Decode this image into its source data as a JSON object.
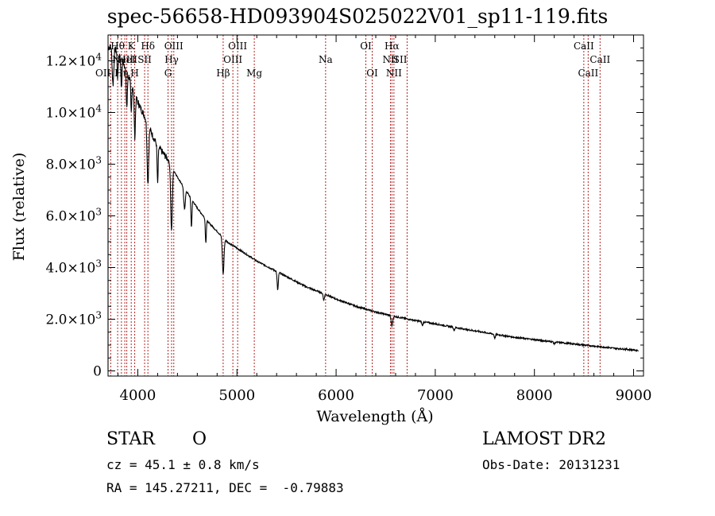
{
  "title": "spec-56658-HD093904S025022V01_sp11-119.fits",
  "info": {
    "class_label": "STAR",
    "class_value": "O",
    "survey": "LAMOST DR2",
    "cz": "cz = 45.1 ± 0.8 km/s",
    "obs_date": "Obs-Date: 20131231",
    "coords": "RA = 145.27211, DEC =  -0.79883"
  },
  "chart_data": {
    "type": "line",
    "title": "spec-56658-HD093904S025022V01_sp11-119.fits",
    "xlabel": "Wavelength (Å)",
    "ylabel": "Flux (relative)",
    "xlim": [
      3700,
      9100
    ],
    "ylim": [
      -200,
      13000
    ],
    "xticks": [
      {
        "v": 4000,
        "label": "4000"
      },
      {
        "v": 5000,
        "label": "5000"
      },
      {
        "v": 6000,
        "label": "6000"
      },
      {
        "v": 7000,
        "label": "7000"
      },
      {
        "v": 8000,
        "label": "8000"
      },
      {
        "v": 9000,
        "label": "9000"
      }
    ],
    "yticks": [
      {
        "v": 0,
        "label": "0",
        "exp": ""
      },
      {
        "v": 2000,
        "label": "2.0×10",
        "exp": "3"
      },
      {
        "v": 4000,
        "label": "4.0×10",
        "exp": "3"
      },
      {
        "v": 6000,
        "label": "6.0×10",
        "exp": "3"
      },
      {
        "v": 8000,
        "label": "8.0×10",
        "exp": "3"
      },
      {
        "v": 10000,
        "label": "1.0×10",
        "exp": "4"
      },
      {
        "v": 12000,
        "label": "1.2×10",
        "exp": "4"
      }
    ],
    "lines": [
      {
        "x": 3727,
        "label": "OII",
        "row": 3,
        "anchor": "end"
      },
      {
        "x": 3797,
        "label": "Hθ",
        "row": 1,
        "anchor": "middle"
      },
      {
        "x": 3835,
        "label": "Hη",
        "row": 3,
        "anchor": "middle"
      },
      {
        "x": 3869,
        "label": "NeIII",
        "row": 2,
        "anchor": "middle"
      },
      {
        "x": 3889,
        "label": "HeI",
        "row": 2,
        "anchor": "middle"
      },
      {
        "x": 3934,
        "label": "K",
        "row": 1,
        "anchor": "middle"
      },
      {
        "x": 3969,
        "label": "H",
        "row": 3,
        "anchor": "middle"
      },
      {
        "x": 4069,
        "label": "SII",
        "row": 2,
        "anchor": "middle"
      },
      {
        "x": 4102,
        "label": "Hδ",
        "row": 1,
        "anchor": "middle"
      },
      {
        "x": 4305,
        "label": "G",
        "row": 3,
        "anchor": "middle"
      },
      {
        "x": 4341,
        "label": "Hγ",
        "row": 2,
        "anchor": "middle"
      },
      {
        "x": 4363,
        "label": "OIII",
        "row": 1,
        "anchor": "middle"
      },
      {
        "x": 4861,
        "label": "Hβ",
        "row": 3,
        "anchor": "middle"
      },
      {
        "x": 4959,
        "label": "OIII",
        "row": 2,
        "anchor": "middle"
      },
      {
        "x": 5007,
        "label": "OIII",
        "row": 1,
        "anchor": "middle"
      },
      {
        "x": 5175,
        "label": "Mg",
        "row": 3,
        "anchor": "middle"
      },
      {
        "x": 5894,
        "label": "Na",
        "row": 2,
        "anchor": "middle"
      },
      {
        "x": 6300,
        "label": "OI",
        "row": 1,
        "anchor": "middle"
      },
      {
        "x": 6364,
        "label": "OI",
        "row": 3,
        "anchor": "middle"
      },
      {
        "x": 6548,
        "label": "NII",
        "row": 2,
        "anchor": "middle"
      },
      {
        "x": 6563,
        "label": "Hα",
        "row": 1,
        "anchor": "middle"
      },
      {
        "x": 6583,
        "label": "NII",
        "row": 3,
        "anchor": "middle"
      },
      {
        "x": 6716,
        "label": "SII",
        "row": 2,
        "anchor": "end"
      },
      {
        "x": 8498,
        "label": "CaII",
        "row": 1,
        "anchor": "middle"
      },
      {
        "x": 8542,
        "label": "CaII",
        "row": 3,
        "anchor": "middle"
      },
      {
        "x": 8662,
        "label": "CaII",
        "row": 2,
        "anchor": "middle"
      }
    ],
    "spectrum": {
      "continuum": [
        [
          3700,
          12500
        ],
        [
          3750,
          12600
        ],
        [
          3800,
          12300
        ],
        [
          3850,
          12000
        ],
        [
          3900,
          11500
        ],
        [
          3950,
          11000
        ],
        [
          4000,
          10400
        ],
        [
          4050,
          10000
        ],
        [
          4100,
          9600
        ],
        [
          4150,
          9100
        ],
        [
          4200,
          8700
        ],
        [
          4300,
          8200
        ],
        [
          4400,
          7500
        ],
        [
          4500,
          6900
        ],
        [
          4600,
          6300
        ],
        [
          4700,
          5800
        ],
        [
          4800,
          5400
        ],
        [
          4900,
          5000
        ],
        [
          5000,
          4750
        ],
        [
          5100,
          4500
        ],
        [
          5200,
          4250
        ],
        [
          5300,
          4050
        ],
        [
          5400,
          3850
        ],
        [
          5500,
          3650
        ],
        [
          5600,
          3450
        ],
        [
          5700,
          3250
        ],
        [
          5800,
          3100
        ],
        [
          5900,
          2950
        ],
        [
          6000,
          2780
        ],
        [
          6200,
          2500
        ],
        [
          6400,
          2280
        ],
        [
          6600,
          2100
        ],
        [
          6800,
          1950
        ],
        [
          7000,
          1820
        ],
        [
          7200,
          1680
        ],
        [
          7400,
          1550
        ],
        [
          7600,
          1420
        ],
        [
          7800,
          1300
        ],
        [
          8000,
          1210
        ],
        [
          8200,
          1120
        ],
        [
          8400,
          1040
        ],
        [
          8600,
          960
        ],
        [
          8800,
          880
        ],
        [
          9000,
          810
        ],
        [
          9050,
          790
        ]
      ],
      "absorption": [
        [
          3750,
          1500,
          8
        ],
        [
          3797,
          1000,
          5
        ],
        [
          3835,
          1200,
          5
        ],
        [
          3889,
          1400,
          6
        ],
        [
          3934,
          1200,
          5
        ],
        [
          3970,
          1700,
          6
        ],
        [
          4102,
          2300,
          8
        ],
        [
          4200,
          1500,
          5
        ],
        [
          4340,
          2500,
          8
        ],
        [
          4471,
          800,
          8
        ],
        [
          4541,
          1100,
          5
        ],
        [
          4686,
          900,
          5
        ],
        [
          4861,
          1400,
          8
        ],
        [
          5411,
          700,
          6
        ],
        [
          5876,
          250,
          6
        ],
        [
          6563,
          400,
          8
        ],
        [
          6870,
          150,
          6
        ],
        [
          7190,
          120,
          6
        ],
        [
          7600,
          150,
          6
        ],
        [
          8200,
          80,
          6
        ]
      ]
    }
  }
}
